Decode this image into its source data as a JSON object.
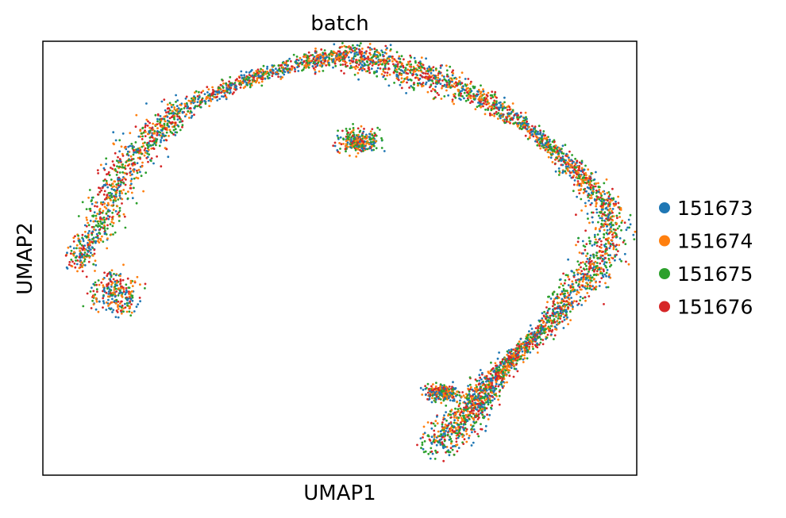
{
  "chart_data": {
    "type": "scatter",
    "title": "batch",
    "xlabel": "UMAP1",
    "ylabel": "UMAP2",
    "grid": false,
    "ticks": false,
    "legend_placement": "right",
    "series": [
      {
        "name": "151673",
        "color": "#1f77b4"
      },
      {
        "name": "151674",
        "color": "#ff7f0e"
      },
      {
        "name": "151675",
        "color": "#2ca02c"
      },
      {
        "name": "151676",
        "color": "#d62728"
      }
    ],
    "shape_path": [
      [
        0.05,
        0.52
      ],
      [
        0.1,
        0.42
      ],
      [
        0.13,
        0.31
      ],
      [
        0.18,
        0.22
      ],
      [
        0.24,
        0.15
      ],
      [
        0.34,
        0.09
      ],
      [
        0.44,
        0.05
      ],
      [
        0.51,
        0.03
      ],
      [
        0.57,
        0.05
      ],
      [
        0.64,
        0.08
      ],
      [
        0.72,
        0.12
      ],
      [
        0.8,
        0.18
      ],
      [
        0.87,
        0.26
      ],
      [
        0.92,
        0.33
      ],
      [
        0.96,
        0.42
      ],
      [
        0.93,
        0.52
      ],
      [
        0.88,
        0.6
      ],
      [
        0.84,
        0.67
      ],
      [
        0.79,
        0.73
      ],
      [
        0.76,
        0.78
      ],
      [
        0.73,
        0.83
      ],
      [
        0.7,
        0.88
      ],
      [
        0.66,
        0.94
      ]
    ],
    "blobs": [
      {
        "x": 0.12,
        "y": 0.58,
        "rx": 0.07,
        "ry": 0.08
      },
      {
        "x": 0.67,
        "y": 0.81,
        "rx": 0.05,
        "ry": 0.03
      },
      {
        "x": 0.53,
        "y": 0.23,
        "rx": 0.06,
        "ry": 0.05
      }
    ]
  }
}
